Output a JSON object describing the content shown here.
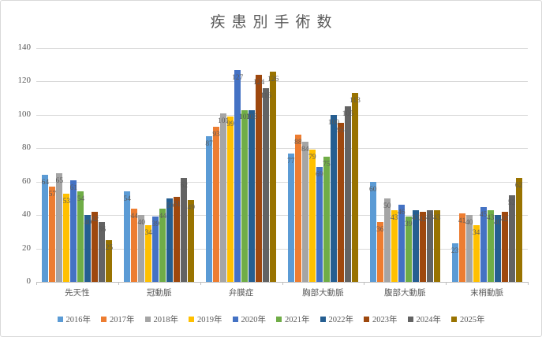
{
  "frame": {
    "background": "#FFFFFF",
    "border_color": "#D9D9D9"
  },
  "chart_data": {
    "type": "bar",
    "title": "疾患別手術数",
    "categories": [
      "先天性",
      "冠動脈",
      "弁膜症",
      "胸部大動脈",
      "腹部大動脈",
      "末梢動脈"
    ],
    "series": [
      {
        "name": "2016年",
        "color": "#5B9BD5",
        "values": [
          64,
          54,
          87,
          77,
          60,
          23
        ]
      },
      {
        "name": "2017年",
        "color": "#ED7D31",
        "values": [
          57,
          44,
          93,
          88,
          36,
          41
        ]
      },
      {
        "name": "2018年",
        "color": "#A5A5A5",
        "values": [
          65,
          40,
          101,
          84,
          50,
          40
        ]
      },
      {
        "name": "2019年",
        "color": "#FFC000",
        "values": [
          53,
          34,
          99,
          79,
          43,
          34
        ]
      },
      {
        "name": "2020年",
        "color": "#4472C4",
        "values": [
          61,
          39,
          127,
          69,
          46,
          45
        ]
      },
      {
        "name": "2021年",
        "color": "#70AD47",
        "values": [
          54,
          44,
          103,
          75,
          39,
          43
        ]
      },
      {
        "name": "2022年",
        "color": "#255E91",
        "values": [
          40,
          50,
          103,
          100,
          43,
          40
        ]
      },
      {
        "name": "2023年",
        "color": "#9E480E",
        "values": [
          42,
          51,
          124,
          95,
          42,
          42
        ]
      },
      {
        "name": "2024年",
        "color": "#636363",
        "values": [
          36,
          62,
          116,
          105,
          43,
          52
        ]
      },
      {
        "name": "2025年",
        "color": "#997300",
        "values": [
          25,
          49,
          126,
          113,
          43,
          62
        ]
      }
    ],
    "ylim": [
      0,
      140
    ],
    "y_tick_step": 20,
    "y_tick_labels": [
      "0",
      "20",
      "40",
      "60",
      "80",
      "100",
      "120",
      "140"
    ],
    "grid": true,
    "data_labels": true,
    "legend_position": "bottom",
    "text_color": "#595959",
    "gridline_color": "#D9D9D9",
    "axis_line_color": "#BFBFBF"
  }
}
